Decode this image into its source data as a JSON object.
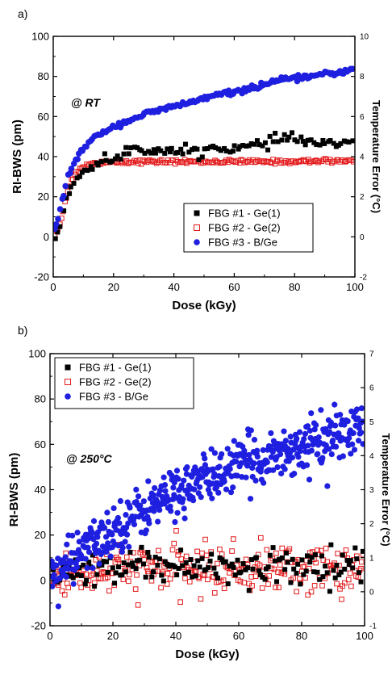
{
  "chart_data": [
    {
      "type": "scatter",
      "panel_label": "a)",
      "annotation": "@ RT",
      "xlabel": "Dose (kGy)",
      "ylabel": "RI-BWS (pm)",
      "y2label": "Temperature Error (°C)",
      "xlim": [
        0,
        100
      ],
      "ylim": [
        -20,
        100
      ],
      "y2lim": [
        -2,
        10
      ],
      "xticks": [
        0,
        20,
        40,
        60,
        80,
        100
      ],
      "yticks": [
        -20,
        0,
        20,
        40,
        60,
        80,
        100
      ],
      "y2ticks": [
        -2,
        0,
        2,
        4,
        6,
        8,
        10
      ],
      "legend_position": "center-right",
      "series": [
        {
          "name": "FBG #1 - Ge(1)",
          "marker": "square-filled",
          "color": "#000000",
          "x": [
            0,
            2,
            4,
            6,
            8,
            10,
            12,
            15,
            18,
            20,
            22,
            25,
            28,
            30,
            35,
            40,
            45,
            50,
            55,
            60,
            65,
            70,
            75,
            80,
            85,
            90,
            95,
            100
          ],
          "y": [
            0,
            4,
            15,
            25,
            30,
            33,
            35,
            37,
            38,
            38,
            40,
            43,
            45,
            44,
            43,
            42,
            43,
            43,
            45,
            44,
            45,
            46,
            49,
            49,
            47,
            47,
            46,
            47
          ]
        },
        {
          "name": "FBG #2 - Ge(2)",
          "marker": "square-open",
          "color": "#e31a1c",
          "x": [
            0,
            2,
            4,
            6,
            8,
            10,
            12,
            15,
            20,
            25,
            30,
            40,
            50,
            60,
            70,
            80,
            90,
            100
          ],
          "y": [
            0,
            5,
            18,
            28,
            33,
            35,
            36,
            37,
            37.5,
            37.5,
            37.5,
            37.5,
            37.5,
            37.5,
            37.5,
            37.5,
            38,
            38
          ]
        },
        {
          "name": "FBG #3 - B/Ge",
          "marker": "circle-filled",
          "color": "#1f1fe0",
          "x": [
            0,
            2,
            4,
            6,
            8,
            10,
            12,
            15,
            20,
            25,
            30,
            35,
            40,
            45,
            50,
            55,
            60,
            65,
            70,
            75,
            80,
            85,
            90,
            95,
            100
          ],
          "y": [
            0,
            12,
            25,
            34,
            40,
            44,
            47,
            51,
            55,
            58,
            61,
            63,
            65,
            67,
            69,
            71,
            72,
            74,
            76,
            78,
            79,
            80,
            81,
            82,
            84
          ]
        }
      ]
    },
    {
      "type": "scatter",
      "panel_label": "b)",
      "annotation": "@ 250°C",
      "xlabel": "Dose (kGy)",
      "ylabel": "RI-BWS (pm)",
      "y2label": "Temperature Error (°C)",
      "xlim": [
        0,
        100
      ],
      "ylim": [
        -20,
        100
      ],
      "y2lim": [
        -1,
        7
      ],
      "xticks": [
        0,
        20,
        40,
        60,
        80,
        100
      ],
      "yticks": [
        -20,
        0,
        20,
        40,
        60,
        80,
        100
      ],
      "y2ticks": [
        -1,
        0,
        1,
        2,
        3,
        4,
        5,
        6,
        7
      ],
      "legend_position": "top-left",
      "series": [
        {
          "name": "FBG #1 - Ge(1)",
          "marker": "square-filled",
          "color": "#000000",
          "x": [
            0,
            10,
            20,
            30,
            40,
            50,
            60,
            70,
            80,
            90,
            100
          ],
          "y": [
            0,
            5,
            6,
            7,
            7,
            7,
            7,
            7,
            7,
            7,
            7
          ]
        },
        {
          "name": "FBG #2 - Ge(2)",
          "marker": "square-open",
          "color": "#e31a1c",
          "x": [
            0,
            10,
            20,
            30,
            40,
            50,
            60,
            70,
            80,
            90,
            100
          ],
          "y": [
            0,
            3,
            4,
            5,
            5,
            5,
            5,
            5,
            5,
            5,
            5
          ]
        },
        {
          "name": "FBG #3 - B/Ge",
          "marker": "circle-filled",
          "color": "#1f1fe0",
          "x": [
            0,
            5,
            10,
            15,
            20,
            25,
            30,
            35,
            40,
            45,
            50,
            55,
            60,
            65,
            70,
            75,
            80,
            85,
            90,
            95,
            100
          ],
          "y": [
            2,
            6,
            12,
            17,
            22,
            27,
            31,
            35,
            39,
            42,
            45,
            48,
            51,
            53,
            55,
            57,
            59,
            61,
            63,
            65,
            67
          ]
        }
      ]
    }
  ]
}
